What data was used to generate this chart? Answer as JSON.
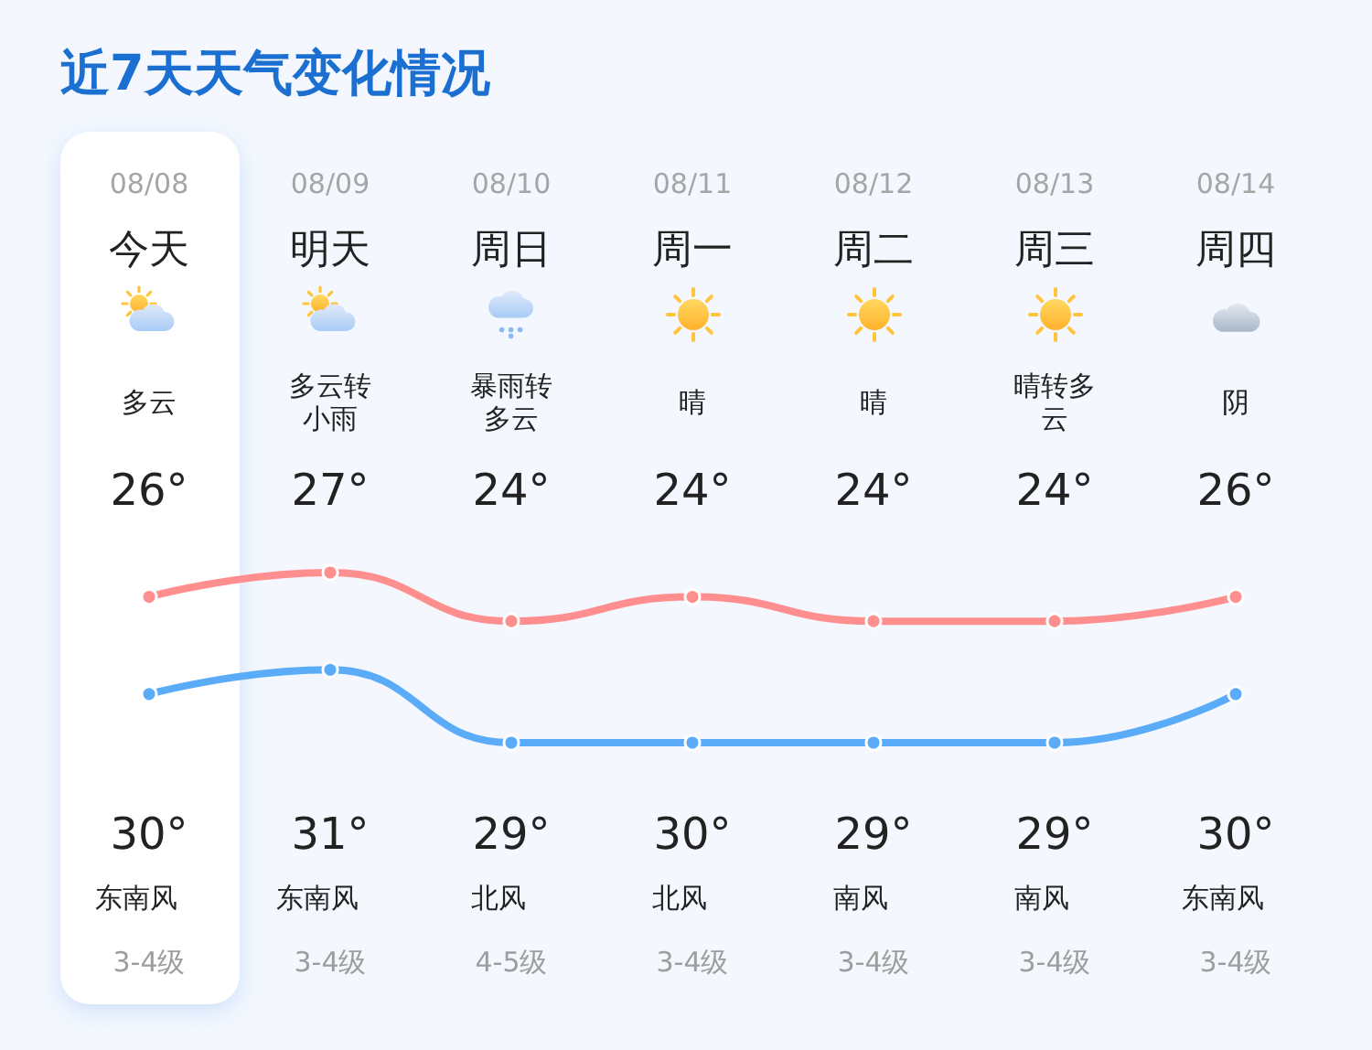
{
  "chart_data": {
    "type": "line",
    "title": "近7天天气变化情况",
    "categories": [
      "08/08",
      "08/09",
      "08/10",
      "08/11",
      "08/12",
      "08/13",
      "08/14"
    ],
    "series": [
      {
        "color": "#5aacf8",
        "values": [
          26,
          27,
          24,
          24,
          24,
          24,
          26
        ],
        "value_labels": [
          "26°",
          "27°",
          "24°",
          "24°",
          "24°",
          "24°",
          "26°"
        ]
      },
      {
        "color": "#ff8e8e",
        "values": [
          30,
          31,
          29,
          30,
          29,
          29,
          30
        ],
        "value_labels": [
          "30°",
          "31°",
          "29°",
          "30°",
          "29°",
          "29°",
          "30°"
        ]
      }
    ],
    "marker": "circle",
    "line_style": "solid",
    "tick_labels": "x",
    "annotations": [
      "今天",
      "明天",
      "周日",
      "周一",
      "周二",
      "周三",
      "周四",
      "多云",
      "多云转小雨",
      "暴雨转多云",
      "晴",
      "晴",
      "晴转多云",
      "阴",
      "东南风",
      "东南风",
      "北风",
      "北风",
      "南风",
      "南风",
      "东南风",
      "3-4级",
      "3-4级",
      "4-5级",
      "3-4级",
      "3-4级",
      "3-4级",
      "3-4级"
    ]
  }
}
